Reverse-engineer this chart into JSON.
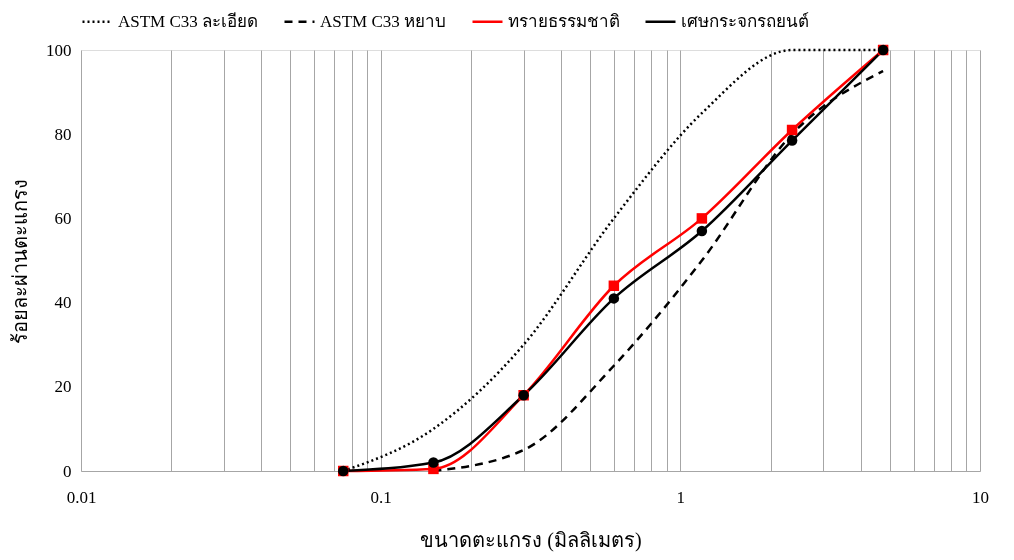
{
  "chart_data": {
    "type": "line",
    "xlabel": "ขนาดตะแกรง (มิลลิเมตร)",
    "ylabel": "ร้อยละผ่านตะแกรง",
    "log": "x",
    "grid": "x",
    "legend": "top",
    "xlim": [
      0.01,
      10
    ],
    "xticks": [
      0.01,
      {
        "value": 0.02,
        "label": null
      },
      {
        "value": 0.03,
        "label": null
      },
      {
        "value": 0.04,
        "label": null
      },
      {
        "value": 0.05,
        "label": null
      },
      {
        "value": 0.06,
        "label": null
      },
      {
        "value": 0.07,
        "label": null
      },
      {
        "value": 0.08,
        "label": null
      },
      {
        "value": 0.09,
        "label": null
      },
      0.1,
      {
        "value": 0.2,
        "label": null
      },
      {
        "value": 0.3,
        "label": null
      },
      {
        "value": 0.4,
        "label": null
      },
      {
        "value": 0.5,
        "label": null
      },
      {
        "value": 0.6,
        "label": null
      },
      {
        "value": 0.7,
        "label": null
      },
      {
        "value": 0.8,
        "label": null
      },
      {
        "value": 0.9,
        "label": null
      },
      1,
      {
        "value": 2,
        "label": null
      },
      {
        "value": 3,
        "label": null
      },
      {
        "value": 4,
        "label": null
      },
      {
        "value": 5,
        "label": null
      },
      {
        "value": 6,
        "label": null
      },
      {
        "value": 7,
        "label": null
      },
      {
        "value": 8,
        "label": null
      },
      {
        "value": 9,
        "label": null
      },
      10
    ],
    "ylim": [
      0,
      100
    ],
    "yticks": [
      0,
      20,
      40,
      60,
      80,
      100
    ],
    "series": [
      {
        "name": "ASTM C33 ละเอียด",
        "color": "#000000",
        "line_style": "dotted",
        "marker": "none",
        "x": [
          0.075,
          0.15,
          0.3,
          0.6,
          1.18,
          2.36,
          4.75
        ],
        "values": [
          0,
          10,
          30,
          60,
          85,
          100,
          100
        ]
      },
      {
        "name": "ASTM C33 หยาบ",
        "color": "#000000",
        "line_style": "dashed",
        "marker": "none",
        "x": [
          0.15,
          0.3,
          0.6,
          1.18,
          2.36,
          4.75
        ],
        "values": [
          0,
          5,
          25,
          50,
          80,
          95
        ]
      },
      {
        "name": "ทรายธรรมชาติ",
        "color": "#ff0000",
        "line_style": "solid",
        "marker": "square",
        "x": [
          0.075,
          0.15,
          0.3,
          0.6,
          1.18,
          2.36,
          4.75
        ],
        "values": [
          0,
          0.5,
          18,
          44,
          60,
          81,
          100
        ]
      },
      {
        "name": "เศษกระจกรถยนต์",
        "color": "#000000",
        "line_style": "solid",
        "marker": "circle",
        "x": [
          0.075,
          0.15,
          0.3,
          0.6,
          1.18,
          2.36,
          4.75
        ],
        "values": [
          0,
          2,
          18,
          41,
          57,
          78.5,
          100
        ]
      }
    ]
  }
}
